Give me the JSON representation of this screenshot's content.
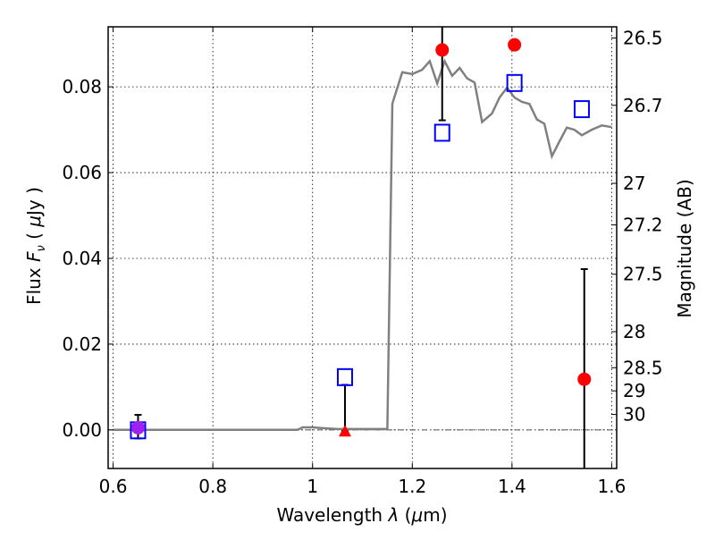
{
  "chart_data": {
    "type": "scatter",
    "xlim": [
      0.59,
      1.61
    ],
    "ylim": [
      -0.009,
      0.094
    ],
    "x_ticks": [
      0.6,
      0.8,
      1.0,
      1.2,
      1.4,
      1.6
    ],
    "x_tick_labels": [
      "0.6",
      "0.8",
      "1",
      "1.2",
      "1.4",
      "1.6"
    ],
    "y_ticks": [
      0.0,
      0.02,
      0.04,
      0.06,
      0.08
    ],
    "y_tick_labels": [
      "0.00",
      "0.02",
      "0.04",
      "0.06",
      "0.08"
    ],
    "xlabel": {
      "prefix": "Wavelength  ",
      "lambda": "λ",
      "open": " (",
      "mu": "μ",
      "unit": "m)"
    },
    "ylabel": {
      "prefix": "Flux  ",
      "F": "F",
      "nu": "ν",
      "open": "  ( ",
      "mu": "μ",
      "unit": "Jy )"
    },
    "y2label": "Magnitude (AB)",
    "grid": true,
    "zero_line": true,
    "y2_ticks": [
      {
        "label": "26.5",
        "flux": 0.0914
      },
      {
        "label": "26.7",
        "flux": 0.0757
      },
      {
        "label": "27",
        "flux": 0.0575
      },
      {
        "label": "27.2",
        "flux": 0.0478
      },
      {
        "label": "27.5",
        "flux": 0.0363
      },
      {
        "label": "28",
        "flux": 0.0229
      },
      {
        "label": "28.5",
        "flux": 0.0145
      },
      {
        "label": "29",
        "flux": 0.0091
      },
      {
        "label": "30",
        "flux": 0.0036
      }
    ],
    "series": [
      {
        "kind": "model-spectrum",
        "color": "#808080",
        "x": [
          0.6,
          0.97,
          0.98,
          1.0,
          1.02,
          1.05,
          1.1,
          1.15,
          1.16,
          1.18,
          1.2,
          1.22,
          1.235,
          1.25,
          1.265,
          1.28,
          1.295,
          1.31,
          1.325,
          1.34,
          1.36,
          1.375,
          1.39,
          1.405,
          1.42,
          1.435,
          1.45,
          1.465,
          1.48,
          1.495,
          1.51,
          1.525,
          1.54,
          1.56,
          1.58,
          1.6
        ],
        "y": [
          0.0,
          0.0,
          0.0006,
          0.0006,
          0.0004,
          0.0002,
          0.0002,
          0.0002,
          0.0761,
          0.0834,
          0.083,
          0.084,
          0.086,
          0.0808,
          0.086,
          0.0826,
          0.0844,
          0.082,
          0.081,
          0.0718,
          0.0738,
          0.0775,
          0.0798,
          0.0775,
          0.0765,
          0.076,
          0.0724,
          0.0714,
          0.0638,
          0.0672,
          0.0705,
          0.07,
          0.0687,
          0.07,
          0.071,
          0.0706
        ]
      },
      {
        "kind": "observed-detections",
        "color": "#ff0000",
        "marker": "circle",
        "x": [
          1.26,
          1.405,
          1.545
        ],
        "y": [
          0.0886,
          0.0898,
          0.0118
        ],
        "err_low": [
          0.0722,
          null,
          null
        ],
        "err_high": [
          null,
          null,
          0.0375
        ]
      },
      {
        "kind": "observed-upper-limit",
        "color": "#ff0000",
        "marker": "triangle",
        "x": [
          1.065
        ],
        "y": [
          -0.0003
        ],
        "err_low": [
          -0.0003
        ],
        "err_high": [
          0.0105
        ]
      },
      {
        "kind": "observed-blue-band",
        "color": "#a020f0",
        "marker": "circle",
        "x": [
          0.65
        ],
        "y": [
          0.0005
        ],
        "err_low": [
          -0.002
        ],
        "err_high": [
          0.0035
        ]
      },
      {
        "kind": "model-photometry",
        "color": "#0000ff",
        "marker": "square",
        "x": [
          0.65,
          1.065,
          1.26,
          1.405,
          1.54
        ],
        "y": [
          -0.0001,
          0.0123,
          0.0693,
          0.0809,
          0.0748
        ]
      }
    ]
  }
}
